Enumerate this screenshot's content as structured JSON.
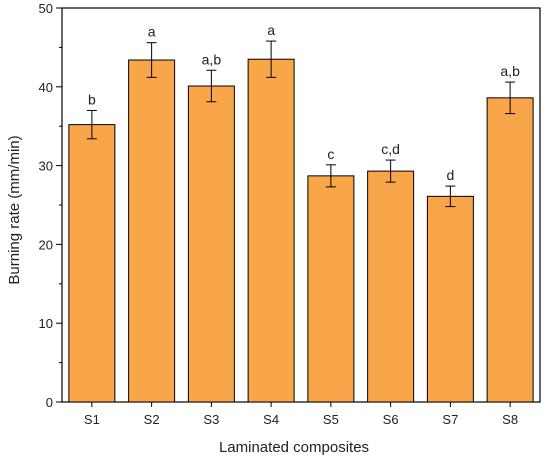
{
  "chart_data": {
    "type": "bar",
    "categories": [
      "S1",
      "S2",
      "S3",
      "S4",
      "S5",
      "S6",
      "S7",
      "S8"
    ],
    "values": [
      35.2,
      43.4,
      40.1,
      43.5,
      28.7,
      29.3,
      26.1,
      38.6
    ],
    "errors": [
      1.8,
      2.2,
      2.0,
      2.3,
      1.4,
      1.4,
      1.3,
      2.0
    ],
    "annotations": [
      "b",
      "a",
      "a,b",
      "a",
      "c",
      "c,d",
      "d",
      "a,b"
    ],
    "xlabel": "Laminated composites",
    "ylabel": "Burning rate (mm/min)",
    "ylim": [
      0,
      50
    ],
    "yticks": [
      0,
      10,
      20,
      30,
      40,
      50
    ],
    "bar_color": "#F9A64B",
    "bar_edge_color": "#000000",
    "grid": false
  }
}
